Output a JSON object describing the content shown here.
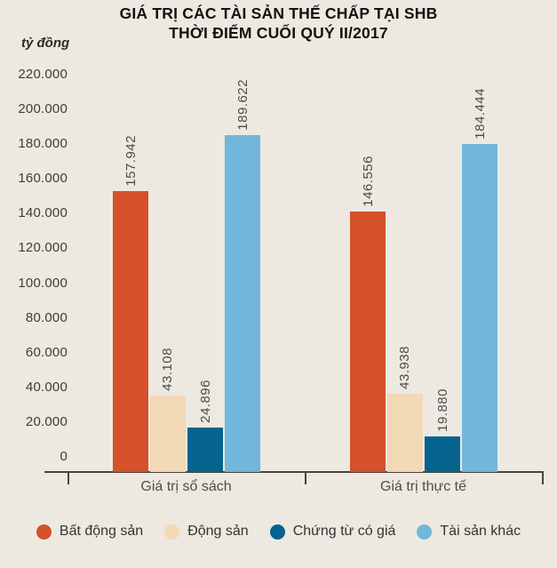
{
  "title": {
    "line1": "GIÁ TRỊ CÁC TÀI SẢN THẾ CHẤP TẠI SHB",
    "line2": "THỜI ĐIỂM CUỐI QUÝ II/2017"
  },
  "chart_data": {
    "type": "bar",
    "title": "GIÁ TRỊ CÁC TÀI SẢN THẾ CHẤP TẠI SHB THỜI ĐIỂM CUỐI QUÝ II/2017",
    "unit_label": "tỷ đồng",
    "categories": [
      "Giá trị sổ sách",
      "Giá trị thực tế"
    ],
    "series": [
      {
        "name": "Bất động sản",
        "color": "#D4512A",
        "values": [
          157942,
          146556
        ],
        "labels": [
          "157.942",
          "146.556"
        ]
      },
      {
        "name": "Động sản",
        "color": "#F3D8B6",
        "values": [
          43108,
          43938
        ],
        "labels": [
          "43.108",
          "43.938"
        ]
      },
      {
        "name": "Chứng từ có giá",
        "color": "#04648E",
        "values": [
          24896,
          19880
        ],
        "labels": [
          "24.896",
          "19.880"
        ]
      },
      {
        "name": "Tài sản khác",
        "color": "#70B7DB",
        "values": [
          189622,
          184444
        ],
        "labels": [
          "189.622",
          "184.444"
        ]
      }
    ],
    "ylim": [
      0,
      220000
    ],
    "ytick_step": 20000,
    "ytick_labels": [
      "0",
      "20.000",
      "40.000",
      "60.000",
      "80.000",
      "100.000",
      "120.000",
      "140.000",
      "160.000",
      "180.000",
      "200.000",
      "220.000"
    ],
    "grid": false,
    "legend_position": "bottom"
  },
  "colors": {
    "background": "#EDE9E1",
    "axis_line": "#4A443B",
    "tick_text": "#3D3D3D",
    "value_text": "#4B4B4B"
  }
}
